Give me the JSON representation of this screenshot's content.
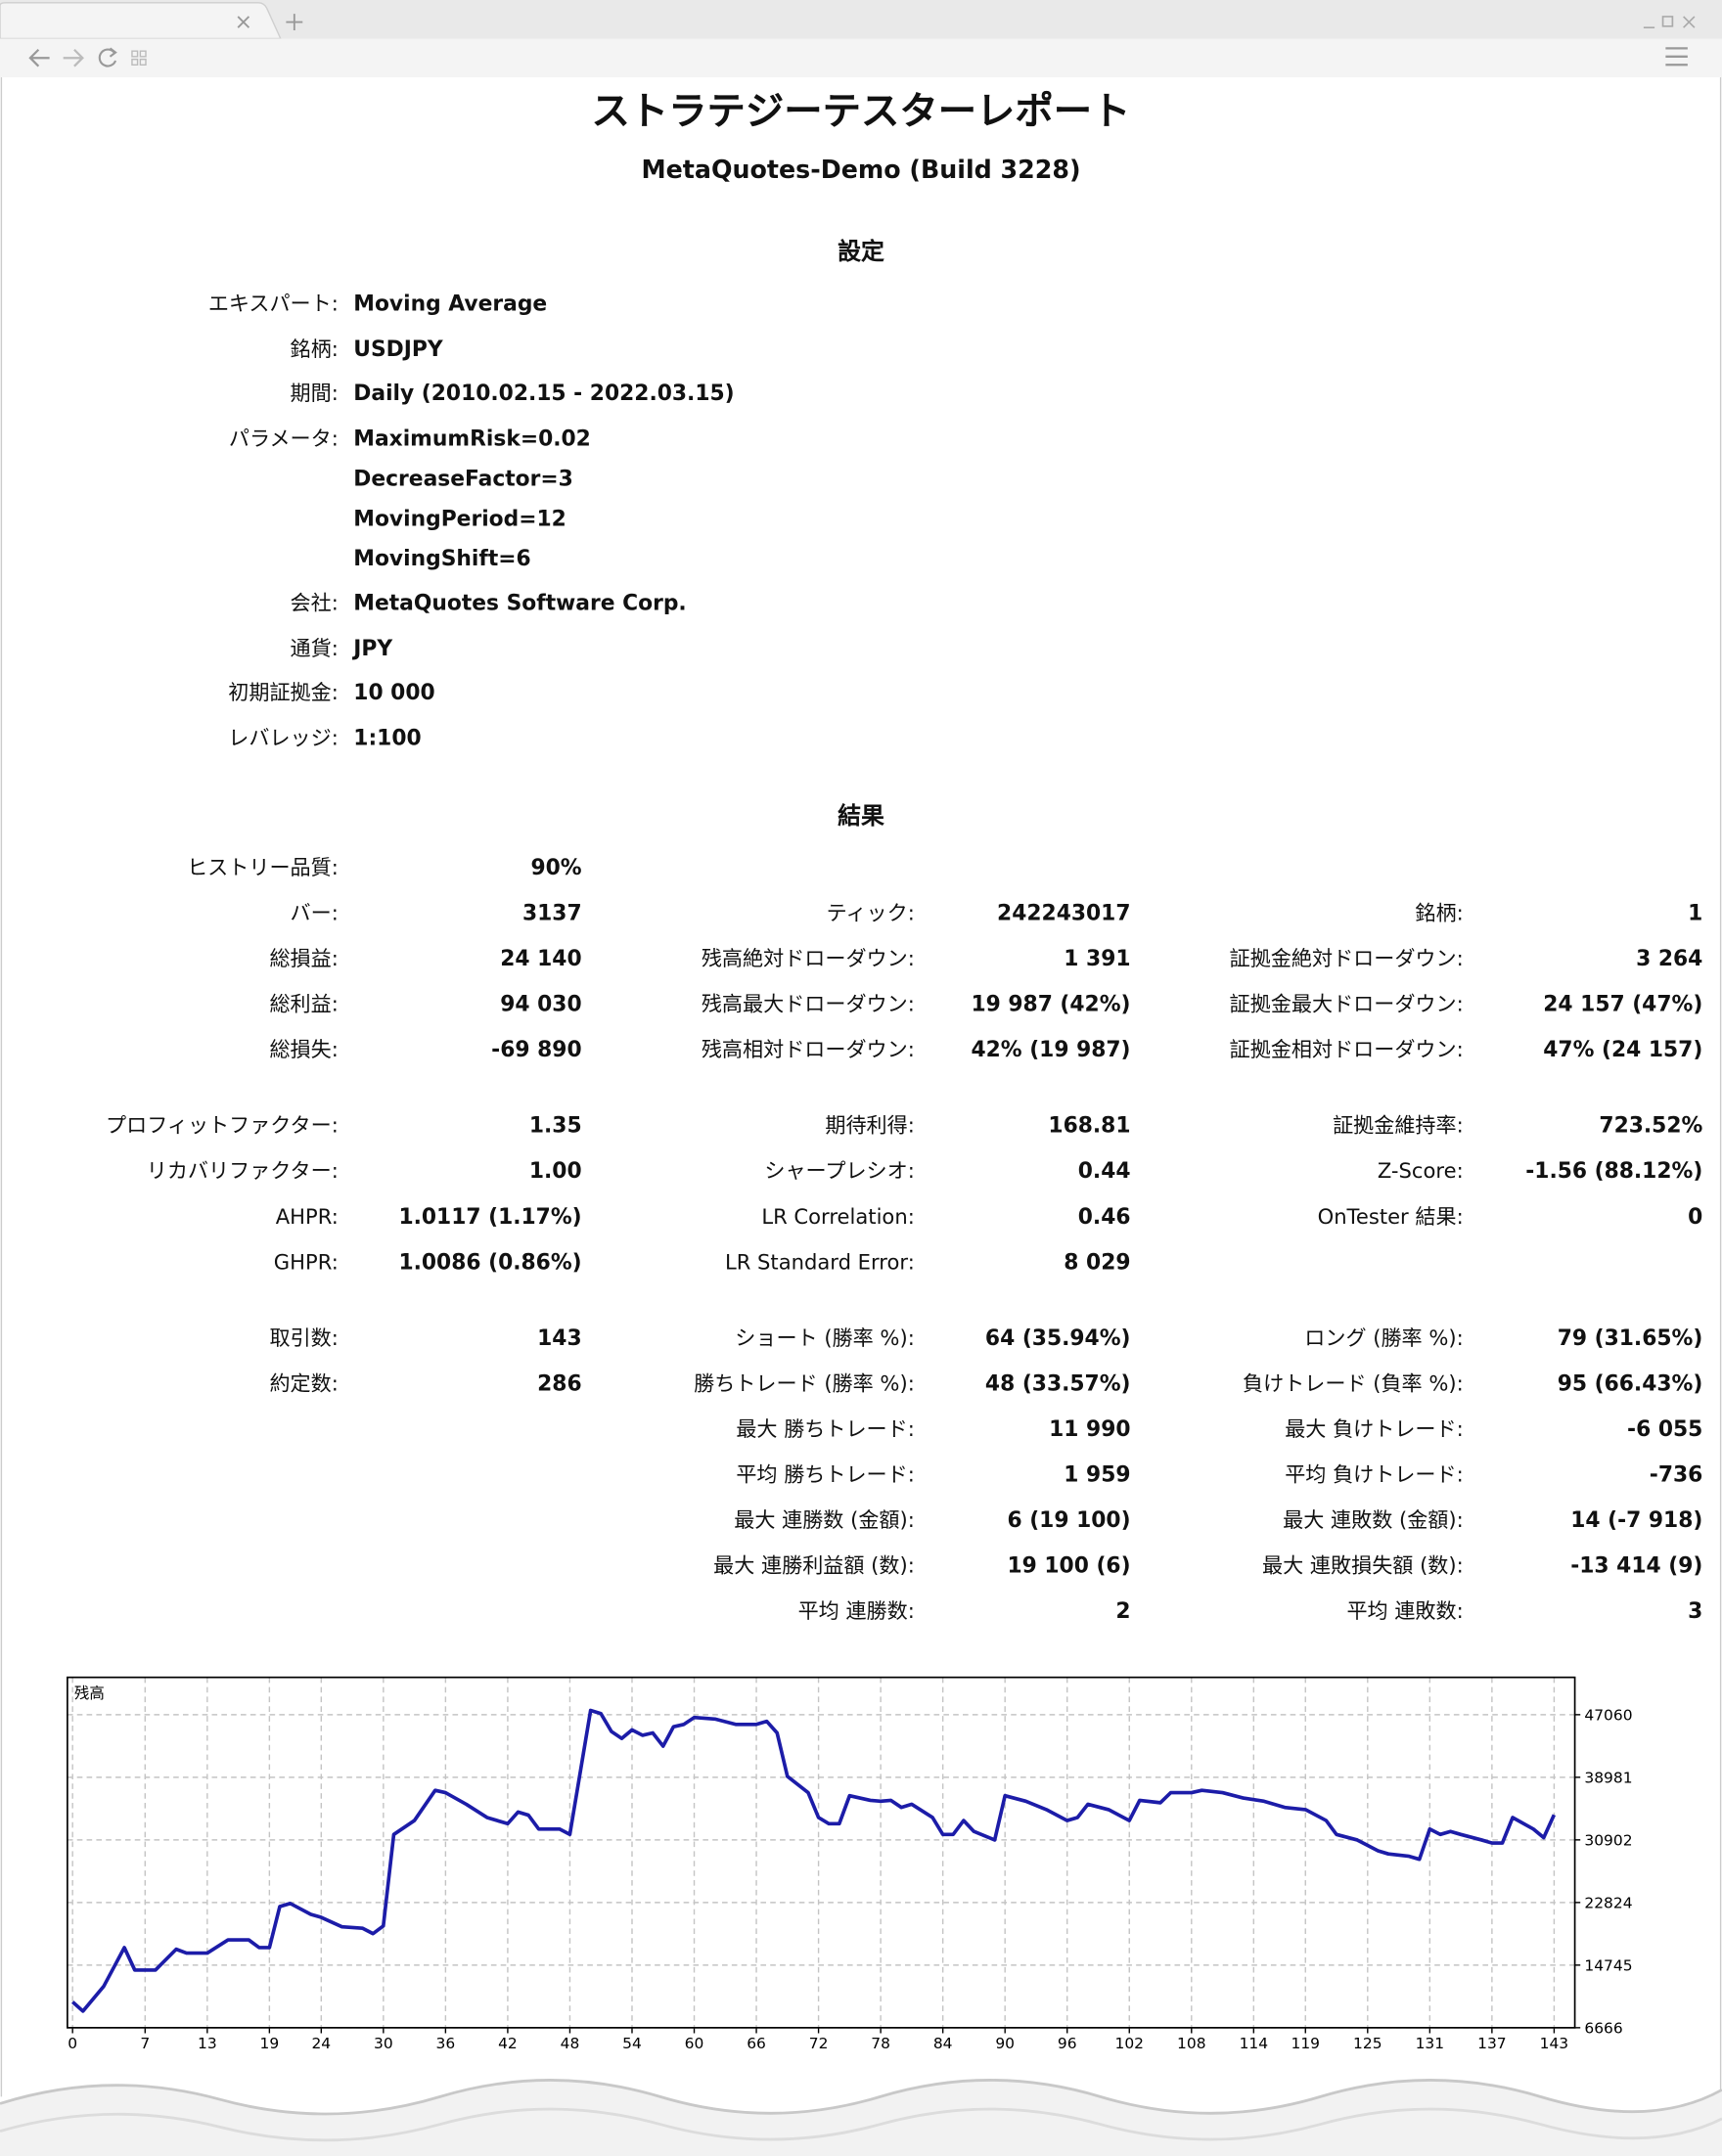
{
  "header": {
    "title": "ストラテジーテスターレポート",
    "subtitle": "MetaQuotes-Demo (Build 3228)"
  },
  "settings": {
    "heading": "設定",
    "rows": [
      {
        "label": "エキスパート:",
        "values": [
          "Moving Average"
        ]
      },
      {
        "label": "銘柄:",
        "values": [
          "USDJPY"
        ]
      },
      {
        "label": "期間:",
        "values": [
          "Daily (2010.02.15 - 2022.03.15)"
        ]
      },
      {
        "label": "パラメータ:",
        "values": [
          "MaximumRisk=0.02",
          "DecreaseFactor=3",
          "MovingPeriod=12",
          "MovingShift=6"
        ]
      },
      {
        "label": "会社:",
        "values": [
          "MetaQuotes Software Corp."
        ]
      },
      {
        "label": "通貨:",
        "values": [
          "JPY"
        ]
      },
      {
        "label": "初期証拠金:",
        "values": [
          "10 000"
        ]
      },
      {
        "label": "レバレッジ:",
        "values": [
          "1:100"
        ]
      }
    ]
  },
  "results": {
    "heading": "結果",
    "groups": [
      [
        [
          {
            "label": "ヒストリー品質:",
            "value": "90%"
          },
          null,
          null
        ],
        [
          {
            "label": "バー:",
            "value": "3137"
          },
          {
            "label": "ティック:",
            "value": "242243017"
          },
          {
            "label": "銘柄:",
            "value": "1"
          }
        ],
        [
          {
            "label": "総損益:",
            "value": "24 140"
          },
          {
            "label": "残高絶対ドローダウン:",
            "value": "1 391"
          },
          {
            "label": "証拠金絶対ドローダウン:",
            "value": "3 264"
          }
        ],
        [
          {
            "label": "総利益:",
            "value": "94 030"
          },
          {
            "label": "残高最大ドローダウン:",
            "value": "19 987 (42%)"
          },
          {
            "label": "証拠金最大ドローダウン:",
            "value": "24 157 (47%)"
          }
        ],
        [
          {
            "label": "総損失:",
            "value": "-69 890"
          },
          {
            "label": "残高相対ドローダウン:",
            "value": "42% (19 987)"
          },
          {
            "label": "証拠金相対ドローダウン:",
            "value": "47% (24 157)"
          }
        ]
      ],
      [
        [
          {
            "label": "プロフィットファクター:",
            "value": "1.35"
          },
          {
            "label": "期待利得:",
            "value": "168.81"
          },
          {
            "label": "証拠金維持率:",
            "value": "723.52%"
          }
        ],
        [
          {
            "label": "リカバリファクター:",
            "value": "1.00"
          },
          {
            "label": "シャープレシオ:",
            "value": "0.44"
          },
          {
            "label": "Z-Score:",
            "value": "-1.56 (88.12%)"
          }
        ],
        [
          {
            "label": "AHPR:",
            "value": "1.0117 (1.17%)"
          },
          {
            "label": "LR Correlation:",
            "value": "0.46"
          },
          {
            "label": "OnTester 結果:",
            "value": "0"
          }
        ],
        [
          {
            "label": "GHPR:",
            "value": "1.0086 (0.86%)"
          },
          {
            "label": "LR Standard Error:",
            "value": "8 029"
          },
          null
        ]
      ],
      [
        [
          {
            "label": "取引数:",
            "value": "143"
          },
          {
            "label": "ショート (勝率 %):",
            "value": "64 (35.94%)"
          },
          {
            "label": "ロング (勝率 %):",
            "value": "79 (31.65%)"
          }
        ],
        [
          {
            "label": "約定数:",
            "value": "286"
          },
          {
            "label": "勝ちトレード (勝率 %):",
            "value": "48 (33.57%)"
          },
          {
            "label": "負けトレード (負率 %):",
            "value": "95 (66.43%)"
          }
        ],
        [
          null,
          {
            "label": "最大 勝ちトレード:",
            "value": "11 990"
          },
          {
            "label": "最大 負けトレード:",
            "value": "-6 055"
          }
        ],
        [
          null,
          {
            "label": "平均 勝ちトレード:",
            "value": "1 959"
          },
          {
            "label": "平均 負けトレード:",
            "value": "-736"
          }
        ],
        [
          null,
          {
            "label": "最大 連勝数 (金額):",
            "value": "6 (19 100)"
          },
          {
            "label": "最大 連敗数 (金額):",
            "value": "14 (-7 918)"
          }
        ],
        [
          null,
          {
            "label": "最大 連勝利益額 (数):",
            "value": "19 100 (6)"
          },
          {
            "label": "最大 連敗損失額 (数):",
            "value": "-13 414 (9)"
          }
        ],
        [
          null,
          {
            "label": "平均 連勝数:",
            "value": "2"
          },
          {
            "label": "平均 連敗数:",
            "value": "3"
          }
        ]
      ]
    ]
  },
  "chart_data": {
    "type": "line",
    "title": "残高",
    "x": [
      0,
      1,
      3,
      5,
      6,
      8,
      10,
      11,
      13,
      15,
      17,
      18,
      19,
      20,
      21,
      23,
      24,
      26,
      28,
      29,
      30,
      31,
      33,
      35,
      36,
      38,
      40,
      42,
      43,
      44,
      45,
      47,
      48,
      50,
      51,
      52,
      53,
      54,
      55,
      56,
      57,
      58,
      59,
      60,
      62,
      64,
      66,
      67,
      68,
      69,
      71,
      72,
      73,
      74,
      75,
      77,
      78,
      79,
      80,
      81,
      83,
      84,
      85,
      86,
      87,
      89,
      90,
      92,
      94,
      96,
      97,
      98,
      100,
      102,
      103,
      105,
      106,
      108,
      109,
      111,
      113,
      115,
      117,
      119,
      121,
      122,
      124,
      126,
      127,
      129,
      130,
      131,
      132,
      133,
      134,
      136,
      137,
      138,
      139,
      141,
      142,
      143
    ],
    "series": [
      {
        "color": "#1c1ca8",
        "values": [
          10000,
          8800,
          12000,
          17000,
          14100,
          14100,
          16800,
          16300,
          16300,
          18000,
          18000,
          17000,
          17000,
          22300,
          22700,
          21300,
          20900,
          19700,
          19500,
          18800,
          19800,
          31600,
          33400,
          37300,
          37000,
          35500,
          33800,
          33000,
          34500,
          34100,
          32300,
          32300,
          31600,
          47600,
          47200,
          44900,
          44000,
          45100,
          44400,
          44700,
          43000,
          45500,
          45800,
          46700,
          46500,
          45800,
          45800,
          46200,
          44700,
          39100,
          37000,
          33800,
          33000,
          33000,
          36600,
          36000,
          35900,
          36000,
          35100,
          35500,
          33800,
          31600,
          31600,
          33400,
          32000,
          30900,
          36600,
          35900,
          34800,
          33400,
          33800,
          35500,
          34800,
          33400,
          36000,
          35700,
          37000,
          37000,
          37300,
          37000,
          36300,
          35900,
          35100,
          34800,
          33400,
          31600,
          30900,
          29500,
          29100,
          28800,
          28400,
          32300,
          31600,
          32000,
          31600,
          30900,
          30500,
          30500,
          33800,
          32300,
          31200,
          34140
        ]
      }
    ],
    "xlim": [
      -0.5,
      145
    ],
    "ylim": [
      6666,
      51878
    ],
    "xticks": [
      0,
      7,
      13,
      19,
      24,
      30,
      36,
      42,
      48,
      54,
      60,
      66,
      72,
      78,
      84,
      90,
      96,
      102,
      108,
      114,
      119,
      125,
      131,
      137,
      143
    ],
    "yticks": [
      6666,
      14745,
      22824,
      30902,
      38981,
      47060
    ],
    "grid": true
  }
}
